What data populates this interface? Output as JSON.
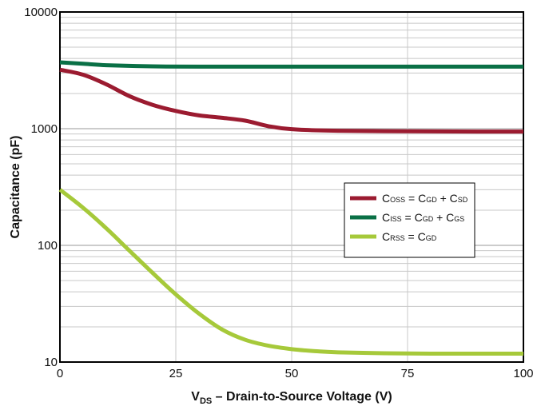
{
  "chart_data": {
    "type": "line",
    "title": "",
    "xlabel": {
      "main": "V",
      "sub": "DS",
      "rest": " – Drain-to-Source Voltage (V)"
    },
    "ylabel": "Capacitance (pF)",
    "xlim": [
      0,
      100
    ],
    "ylim": [
      10,
      10000
    ],
    "yscale": "log",
    "grid": true,
    "legend_position": "right",
    "x_ticks": [
      "0",
      "25",
      "50",
      "75",
      "100"
    ],
    "y_ticks": [
      "10",
      "100",
      "1000",
      "10000"
    ],
    "series": [
      {
        "name": "COSS = CGD + CSD",
        "legend": {
          "main": "C",
          "sub": "OSS",
          "eq1": " = C",
          "sub2": "GD",
          "plus": " + C",
          "sub3": "SD"
        },
        "color": "#9b1b30",
        "x": [
          0,
          5,
          10,
          15,
          20,
          25,
          30,
          35,
          40,
          45,
          50,
          60,
          75,
          90,
          100
        ],
        "y": [
          3200,
          2900,
          2400,
          1900,
          1600,
          1420,
          1300,
          1240,
          1170,
          1050,
          990,
          960,
          950,
          945,
          945
        ]
      },
      {
        "name": "CISS = CGD + CGS",
        "legend": {
          "main": "C",
          "sub": "ISS",
          "eq1": " = C",
          "sub2": "GD",
          "plus": " + C",
          "sub3": "GS"
        },
        "color": "#0a7046",
        "x": [
          0,
          5,
          10,
          20,
          30,
          50,
          75,
          100
        ],
        "y": [
          3700,
          3600,
          3500,
          3420,
          3400,
          3400,
          3400,
          3400
        ]
      },
      {
        "name": "CRSS = CGD",
        "legend": {
          "main": "C",
          "sub": "RSS",
          "eq1": " = C",
          "sub2": "GD",
          "plus": "",
          "sub3": ""
        },
        "color": "#a6c93a",
        "x": [
          0,
          5,
          10,
          15,
          20,
          25,
          30,
          35,
          40,
          45,
          50,
          55,
          60,
          70,
          80,
          90,
          100
        ],
        "y": [
          300,
          210,
          140,
          90,
          58,
          38,
          26,
          19,
          15.5,
          13.8,
          12.9,
          12.4,
          12.1,
          11.9,
          11.8,
          11.8,
          11.8
        ]
      }
    ]
  }
}
